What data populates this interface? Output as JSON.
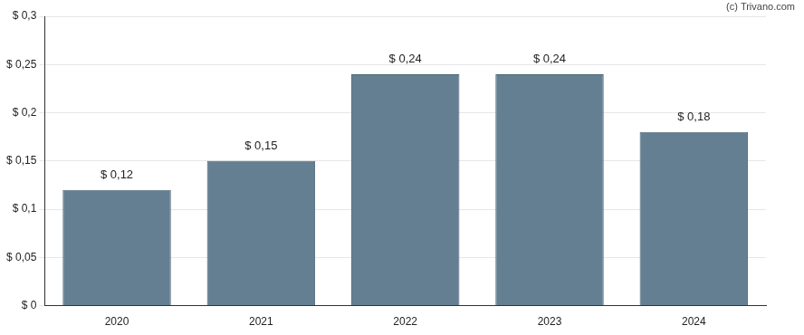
{
  "chart_data": {
    "type": "bar",
    "annotations": [
      "(c) Trivano.com"
    ],
    "categories": [
      "2020",
      "2021",
      "2022",
      "2023",
      "2024"
    ],
    "values": [
      0.12,
      0.15,
      0.24,
      0.24,
      0.18
    ],
    "value_labels": [
      "$ 0,12",
      "$ 0,15",
      "$ 0,24",
      "$ 0,24",
      "$ 0,18"
    ],
    "data_labels": true,
    "color": "#657f92",
    "ylim": [
      0,
      0.3
    ],
    "yticks": [
      {
        "value": 0,
        "label": "$ 0"
      },
      {
        "value": 0.05,
        "label": "$ 0,05"
      },
      {
        "value": 0.1,
        "label": "$ 0,1"
      },
      {
        "value": 0.15,
        "label": "$ 0,15"
      },
      {
        "value": 0.2,
        "label": "$ 0,2"
      },
      {
        "value": 0.25,
        "label": "$ 0,25"
      },
      {
        "value": 0.3,
        "label": "$ 0,3"
      }
    ],
    "grid": true
  }
}
